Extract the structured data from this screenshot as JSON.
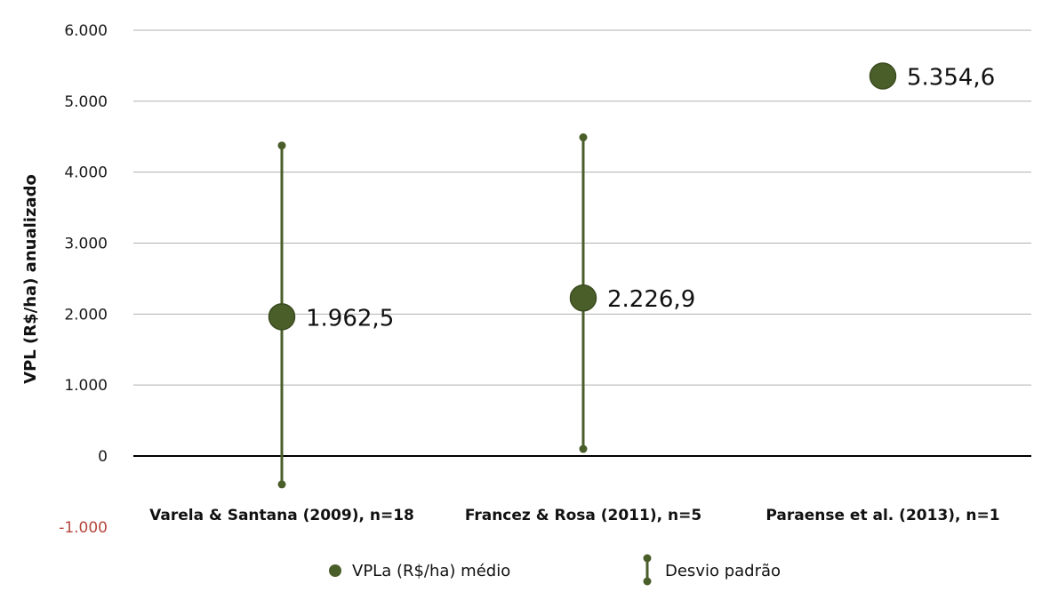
{
  "chart_data": {
    "type": "scatter",
    "title": "",
    "ylabel": "VPL (R$/ha) anualizado",
    "xlabel": "",
    "ylim": [
      -1000,
      6000
    ],
    "yticks": [
      6000,
      5000,
      4000,
      3000,
      2000,
      1000,
      0,
      -1000
    ],
    "ytick_labels": [
      "6.000",
      "5.000",
      "4.000",
      "3.000",
      "2.000",
      "1.000",
      "0",
      "-1.000"
    ],
    "grid": true,
    "legend_position": "bottom",
    "categories": [
      "Varela & Santana (2009), n=18",
      "Francez & Rosa (2011), n=5",
      "Paraense et al. (2013), n=1"
    ],
    "series": [
      {
        "name": "VPLa (R$/ha) médio",
        "values": [
          1962.5,
          2226.9,
          5354.6
        ],
        "labels": [
          "1.962,5",
          "2.226,9",
          "5.354,6"
        ]
      },
      {
        "name": "Desvio padrão",
        "low": [
          -400,
          100,
          null
        ],
        "high": [
          4375,
          4490,
          null
        ]
      }
    ],
    "colors": {
      "marker": "#4a5e2a",
      "marker_stroke": "#3b4b20",
      "grid": "#b0b0b0",
      "zero_line": "#000000",
      "negative_tick": "#b5473d"
    }
  }
}
